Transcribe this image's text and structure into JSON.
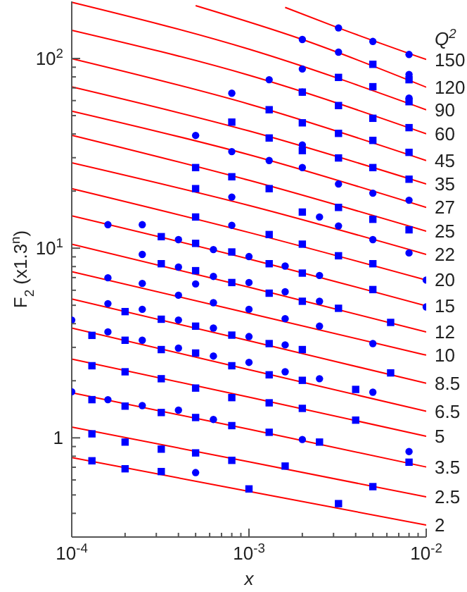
{
  "chart_data": {
    "type": "scatter",
    "xlabel": "x",
    "ylabel": "F$_{2}$ (x1.3$^{n}$)",
    "legend_title": "Q$^{2}$",
    "log": "xy",
    "xlim": [
      0.0001,
      0.01
    ],
    "ylim": [
      0.3,
      200
    ],
    "xticks": [
      {
        "value": 0.0001,
        "label": "10$^{-4}$"
      },
      {
        "value": 0.0002,
        "label": null
      },
      {
        "value": 0.0003,
        "label": null
      },
      {
        "value": 0.0004,
        "label": null
      },
      {
        "value": 0.0005,
        "label": null
      },
      {
        "value": 0.0006,
        "label": null
      },
      {
        "value": 0.0007,
        "label": null
      },
      {
        "value": 0.0008,
        "label": null
      },
      {
        "value": 0.0009,
        "label": null
      },
      {
        "value": 0.001,
        "label": "10$^{-3}$"
      },
      {
        "value": 0.002,
        "label": null
      },
      {
        "value": 0.003,
        "label": null
      },
      {
        "value": 0.004,
        "label": null
      },
      {
        "value": 0.005,
        "label": null
      },
      {
        "value": 0.006,
        "label": null
      },
      {
        "value": 0.007,
        "label": null
      },
      {
        "value": 0.008,
        "label": null
      },
      {
        "value": 0.009,
        "label": null
      },
      {
        "value": 0.01,
        "label": "10$^{-2}$"
      }
    ],
    "yticks": [
      {
        "value": 0.4,
        "label": null
      },
      {
        "value": 0.5,
        "label": null
      },
      {
        "value": 0.6,
        "label": null
      },
      {
        "value": 0.7,
        "label": null
      },
      {
        "value": 0.8,
        "label": null
      },
      {
        "value": 0.9,
        "label": null
      },
      1,
      {
        "value": 2,
        "label": null
      },
      {
        "value": 3,
        "label": null
      },
      {
        "value": 4,
        "label": null
      },
      {
        "value": 5,
        "label": null
      },
      {
        "value": 6,
        "label": null
      },
      {
        "value": 7,
        "label": null
      },
      {
        "value": 8,
        "label": null
      },
      {
        "value": 9,
        "label": null
      },
      {
        "value": 10,
        "label": "10$^{1}$"
      },
      {
        "value": 20,
        "label": null
      },
      {
        "value": 30,
        "label": null
      },
      {
        "value": 40,
        "label": null
      },
      {
        "value": 50,
        "label": null
      },
      {
        "value": 60,
        "label": null
      },
      {
        "value": 70,
        "label": null
      },
      {
        "value": 80,
        "label": null
      },
      {
        "value": 90,
        "label": null
      },
      {
        "value": 100,
        "label": "10$^{2}$"
      }
    ],
    "series": [
      {
        "type": "line",
        "name": "150",
        "color": "#ff0000",
        "x": [
          0.0016,
          0.0032,
          0.01
        ],
        "values": [
          186,
          145,
          98.8
        ]
      },
      {
        "type": "line",
        "name": "120",
        "color": "#ff0000",
        "x": [
          0.0005,
          0.002,
          0.01
        ],
        "values": [
          190,
          126,
          70.6
        ]
      },
      {
        "type": "line",
        "name": "90",
        "color": "#ff0000",
        "x": [
          0.0001,
          0.001,
          0.01
        ],
        "values": [
          198,
          112,
          53.7
        ]
      },
      {
        "type": "line",
        "name": "60",
        "color": "#ff0000",
        "x": [
          0.0001,
          0.001,
          0.01
        ],
        "values": [
          141,
          81.6,
          40.1
        ]
      },
      {
        "type": "line",
        "name": "45",
        "color": "#ff0000",
        "x": [
          0.0001,
          0.001,
          0.01
        ],
        "values": [
          99.8,
          57.5,
          29.0
        ]
      },
      {
        "type": "line",
        "name": "35",
        "color": "#ff0000",
        "x": [
          0.0001,
          0.001,
          0.01
        ],
        "values": [
          70.9,
          41.5,
          21.8
        ]
      },
      {
        "type": "line",
        "name": "27",
        "color": "#ff0000",
        "x": [
          0.0001,
          0.001,
          0.01
        ],
        "values": [
          52.8,
          31.1,
          16.4
        ]
      },
      {
        "type": "line",
        "name": "25",
        "color": "#ff0000",
        "x": [
          0.0001,
          0.001,
          0.01
        ],
        "values": [
          39.4,
          22.8,
          12.3
        ]
      },
      {
        "type": "line",
        "name": "22",
        "color": "#ff0000",
        "x": [
          0.0001,
          0.001,
          0.01
        ],
        "values": [
          28.2,
          16.8,
          9.27
        ]
      },
      {
        "type": "line",
        "name": "20",
        "color": "#ff0000",
        "x": [
          0.0001,
          0.001,
          0.01
        ],
        "values": [
          20.6,
          12.1,
          6.79
        ]
      },
      {
        "type": "line",
        "name": "15",
        "color": "#ff0000",
        "x": [
          0.0001,
          0.001,
          0.01
        ],
        "values": [
          14.8,
          8.77,
          4.96
        ]
      },
      {
        "type": "line",
        "name": "12",
        "color": "#ff0000",
        "x": [
          0.0001,
          0.001,
          0.01
        ],
        "values": [
          10.5,
          6.23,
          3.62
        ]
      },
      {
        "type": "line",
        "name": "10",
        "color": "#ff0000",
        "x": [
          0.0001,
          0.001,
          0.01
        ],
        "values": [
          7.52,
          4.54,
          2.73
        ]
      },
      {
        "type": "line",
        "name": "8.5",
        "color": "#ff0000",
        "x": [
          0.0001,
          0.001,
          0.01
        ],
        "values": [
          5.4,
          3.25,
          1.94
        ]
      },
      {
        "type": "line",
        "name": "6.5",
        "color": "#ff0000",
        "x": [
          0.0001,
          0.001,
          0.01
        ],
        "values": [
          3.79,
          2.29,
          1.38
        ]
      },
      {
        "type": "line",
        "name": "5",
        "color": "#ff0000",
        "x": [
          0.0001,
          0.001,
          0.01
        ],
        "values": [
          2.6,
          1.64,
          1.02
        ]
      },
      {
        "type": "line",
        "name": "3.5",
        "color": "#ff0000",
        "x": [
          0.0001,
          0.001,
          0.01
        ],
        "values": [
          1.73,
          1.11,
          0.702
        ]
      },
      {
        "type": "line",
        "name": "2.5",
        "color": "#ff0000",
        "x": [
          0.0001,
          0.001,
          0.01
        ],
        "values": [
          1.14,
          0.748,
          0.488
        ]
      },
      {
        "type": "line",
        "name": "2",
        "color": "#ff0000",
        "x": [
          0.0001,
          0.001,
          0.01
        ],
        "values": [
          0.787,
          0.522,
          0.347
        ]
      },
      {
        "marker": "circle",
        "color": "#0000ff",
        "x": [
          0.0001,
          0.0001,
          0.00016,
          0.00016,
          0.00016,
          0.00016,
          0.00016,
          0.00025,
          0.00025,
          0.00025,
          0.00025,
          0.00025,
          0.00025,
          0.0004,
          0.0004,
          0.0004,
          0.0004,
          0.0004,
          0.0004,
          0.0005,
          0.0005,
          0.0005,
          0.00063,
          0.00063,
          0.00063,
          0.00063,
          0.00063,
          0.00063,
          0.0008,
          0.0008,
          0.0008,
          0.0008,
          0.001,
          0.001,
          0.001,
          0.001,
          0.001,
          0.0013,
          0.0013,
          0.0016,
          0.0016,
          0.0016,
          0.0016,
          0.0016,
          0.002,
          0.002,
          0.002,
          0.002,
          0.002,
          0.002,
          0.0025,
          0.0025,
          0.0025,
          0.0025,
          0.0025,
          0.0032,
          0.0032,
          0.0032,
          0.0032,
          0.005,
          0.005,
          0.005,
          0.005,
          0.005,
          0.008,
          0.008,
          0.008,
          0.008,
          0.008,
          0.008,
          0.01,
          0.01
        ],
        "values": [
          4.18,
          1.75,
          13.3,
          6.98,
          5.1,
          3.62,
          1.59,
          13.3,
          9.27,
          6.52,
          4.76,
          3.27,
          1.48,
          11.1,
          7.95,
          5.65,
          4.18,
          2.97,
          1.4,
          39.3,
          6.48,
          0.656,
          9.83,
          7.1,
          5.16,
          3.79,
          2.7,
          1.25,
          65.6,
          32.3,
          18.6,
          13.2,
          9.03,
          6.59,
          4.76,
          3.42,
          2.5,
          77.3,
          29.0,
          8.05,
          5.89,
          4.25,
          3.09,
          2.23,
          126,
          88.1,
          66.5,
          35.0,
          26.6,
          0.98,
          14.6,
          7.18,
          5.25,
          3.88,
          2.05,
          145,
          108,
          21.8,
          13.1,
          123,
          19.5,
          11.1,
          3.14,
          1.74,
          105,
          82.3,
          61.9,
          17.9,
          9.44,
          0.847,
          6.79,
          4.9
        ]
      },
      {
        "marker": "square",
        "color": "#0000ff",
        "x": [
          0.00013,
          0.00013,
          0.00013,
          0.00013,
          0.00013,
          0.0002,
          0.0002,
          0.0002,
          0.0002,
          0.0002,
          0.0002,
          0.00032,
          0.00032,
          0.00032,
          0.00032,
          0.00032,
          0.00032,
          0.00032,
          0.00032,
          0.0005,
          0.0005,
          0.0005,
          0.0005,
          0.0005,
          0.0005,
          0.0005,
          0.0005,
          0.0005,
          0.0005,
          0.0008,
          0.0008,
          0.0008,
          0.0008,
          0.0008,
          0.0008,
          0.0008,
          0.0008,
          0.0008,
          0.001,
          0.0013,
          0.0013,
          0.0013,
          0.0013,
          0.0013,
          0.0013,
          0.0013,
          0.0013,
          0.0013,
          0.0013,
          0.0016,
          0.002,
          0.002,
          0.002,
          0.002,
          0.002,
          0.002,
          0.002,
          0.002,
          0.002,
          0.002,
          0.0025,
          0.0032,
          0.0032,
          0.0032,
          0.0032,
          0.0032,
          0.0032,
          0.0032,
          0.0032,
          0.004,
          0.004,
          0.005,
          0.005,
          0.005,
          0.005,
          0.005,
          0.005,
          0.005,
          0.005,
          0.005,
          0.0063,
          0.0063,
          0.008,
          0.008,
          0.008,
          0.008,
          0.008,
          0.008,
          0.008
        ],
        "values": [
          3.47,
          2.4,
          1.59,
          1.05,
          0.757,
          4.63,
          3.27,
          2.23,
          1.47,
          0.95,
          0.687,
          11.5,
          8.28,
          4.22,
          2.92,
          2.05,
          1.36,
          0.872,
          0.664,
          26.6,
          20.6,
          14.6,
          10.6,
          7.61,
          3.88,
          2.8,
          1.83,
          1.28,
          0.833,
          46.2,
          23.8,
          9.55,
          6.59,
          3.48,
          2.4,
          1.63,
          1.16,
          0.761,
          0.538,
          53.7,
          38.1,
          20.6,
          11.8,
          8.28,
          5.79,
          3.14,
          2.15,
          1.53,
          1.07,
          0.71,
          66.5,
          45.8,
          32.7,
          15.5,
          10.5,
          7.39,
          5.25,
          2.92,
          2.01,
          1.43,
          0.95,
          79.5,
          56.5,
          40.3,
          29.9,
          16.4,
          9.12,
          4.82,
          0.45,
          1.8,
          1.24,
          93.2,
          71.0,
          48.4,
          37.0,
          26.6,
          14.2,
          8.28,
          6.05,
          0.553,
          4.06,
          2.2,
          77.3,
          59.2,
          43.2,
          32.0,
          23.1,
          12.5,
          0.744
        ]
      }
    ]
  }
}
